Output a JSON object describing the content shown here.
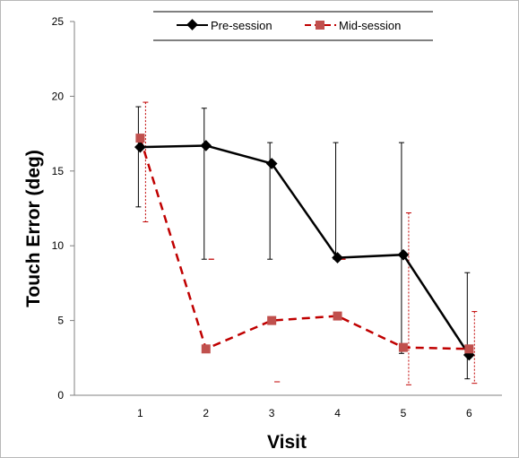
{
  "chart_data": {
    "type": "line",
    "title": "",
    "xlabel": "Visit",
    "ylabel": "Touch Error (deg)",
    "categories": [
      "1",
      "2",
      "3",
      "4",
      "5",
      "6"
    ],
    "x": [
      1,
      2,
      3,
      4,
      5,
      6
    ],
    "xlim": [
      0,
      6.5
    ],
    "ylim": [
      0,
      25
    ],
    "yticks": [
      0,
      5,
      10,
      15,
      20,
      25
    ],
    "grid": false,
    "legend_position": "top",
    "series": [
      {
        "name": "Pre-session",
        "color": "#000000",
        "marker": "diamond",
        "line_style": "solid",
        "values": [
          16.6,
          16.7,
          15.5,
          9.2,
          9.4,
          2.7
        ],
        "error_upper": [
          19.3,
          19.2,
          16.9,
          16.9,
          16.9,
          8.2
        ],
        "error_lower": [
          12.6,
          9.1,
          9.1,
          9.1,
          2.8,
          1.1
        ]
      },
      {
        "name": "Mid-session",
        "color": "#c0504d",
        "line_color": "#c00000",
        "marker": "square",
        "line_style": "dashed",
        "values": [
          17.2,
          3.1,
          5.0,
          5.3,
          3.2,
          3.1
        ],
        "error_upper": [
          19.6,
          9.1,
          0.9,
          9.1,
          12.2,
          5.6
        ],
        "error_lower": [
          11.6,
          9.1,
          0.9,
          9.1,
          0.7,
          0.8
        ]
      }
    ]
  }
}
